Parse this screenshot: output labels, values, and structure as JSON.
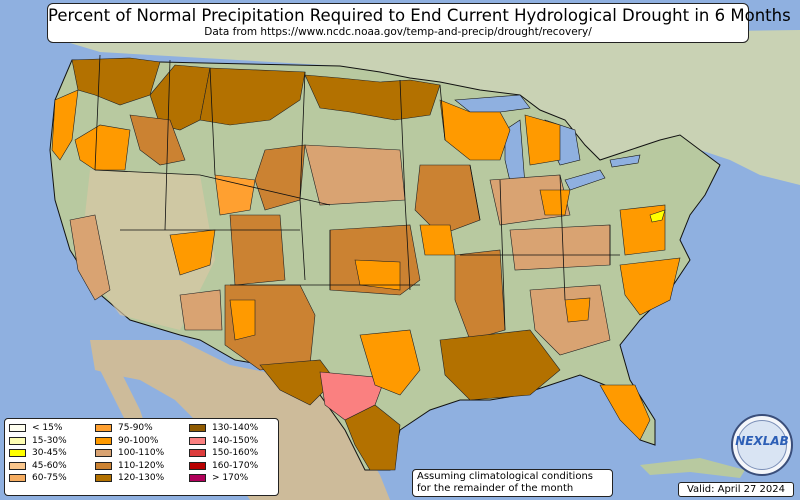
{
  "title": "Percent of Normal Precipitation Required to End Current Hydrological Drought in 6 Months",
  "subtitle": "Data from https://www.ncdc.noaa.gov/temp-and-precip/drought/recovery/",
  "legend": {
    "col1": [
      {
        "label": "< 15%",
        "color": "#fffff0"
      },
      {
        "label": "15-30%",
        "color": "#ffffb3"
      },
      {
        "label": "30-45%",
        "color": "#ffff00"
      },
      {
        "label": "45-60%",
        "color": "#f9c68c"
      },
      {
        "label": "60-75%",
        "color": "#f5ac60"
      }
    ],
    "col2": [
      {
        "label": "75-90%",
        "color": "#ffa030"
      },
      {
        "label": "90-100%",
        "color": "#ff9a00"
      },
      {
        "label": "100-110%",
        "color": "#d9a372"
      },
      {
        "label": "110-120%",
        "color": "#cb8232"
      },
      {
        "label": "120-130%",
        "color": "#b37100"
      }
    ],
    "col3": [
      {
        "label": "130-140%",
        "color": "#8f5a00"
      },
      {
        "label": "140-150%",
        "color": "#fa8080"
      },
      {
        "label": "150-160%",
        "color": "#dd3c3c"
      },
      {
        "label": "160-170%",
        "color": "#b80000"
      },
      {
        "label": "> 170%",
        "color": "#b0005a"
      }
    ]
  },
  "note_line1": "Assuming climatological conditions",
  "note_line2": "for the remainder of the month",
  "valid": "Valid: April 27 2024",
  "logo_text": "NEXLAB",
  "colors": {
    "ocean": "#8fb0e0",
    "land": "#b8c9a0",
    "land_north": "#a8bb8a",
    "desert": "#d8c7a4",
    "canada": "#c9d2b4",
    "mexico": "#cdbb9a"
  },
  "map_regions": [
    {
      "name": "pacific-northwest-region",
      "category": "120-130%"
    },
    {
      "name": "oregon-coast-region",
      "category": "90-100%"
    },
    {
      "name": "idaho-montana-region",
      "category": "120-130%"
    },
    {
      "name": "montana-region",
      "category": "120-130%"
    },
    {
      "name": "north-dakota-minnesota-region",
      "category": "120-130%"
    },
    {
      "name": "wisconsin-michigan-region",
      "category": "90-100%"
    },
    {
      "name": "nevada-oregon-region",
      "category": "90-100%"
    },
    {
      "name": "utah-region",
      "category": "75-90%"
    },
    {
      "name": "colorado-region",
      "category": "110-120%"
    },
    {
      "name": "arizona-new-mexico-region",
      "category": "110-120%"
    },
    {
      "name": "west-texas-region",
      "category": "120-130%"
    },
    {
      "name": "south-texas-region",
      "category": "140-150%"
    },
    {
      "name": "texas-gulf-region",
      "category": "120-130%"
    },
    {
      "name": "central-texas-region",
      "category": "90-100%"
    },
    {
      "name": "kansas-oklahoma-region",
      "category": "110-120%"
    },
    {
      "name": "iowa-missouri-region",
      "category": "110-120%"
    },
    {
      "name": "lower-mississippi-region",
      "category": "110-120%"
    },
    {
      "name": "gulf-coast-region",
      "category": "120-130%"
    },
    {
      "name": "florida-region",
      "category": "90-100%"
    },
    {
      "name": "carolinas-region",
      "category": "90-100%"
    },
    {
      "name": "virginia-region",
      "category": "90-100%"
    },
    {
      "name": "tennessee-kentucky-region",
      "category": "100-110%"
    },
    {
      "name": "ohio-valley-region",
      "category": "100-110%"
    },
    {
      "name": "california-region",
      "category": "100-110%"
    },
    {
      "name": "nebraska-region",
      "category": "100-110%"
    }
  ]
}
